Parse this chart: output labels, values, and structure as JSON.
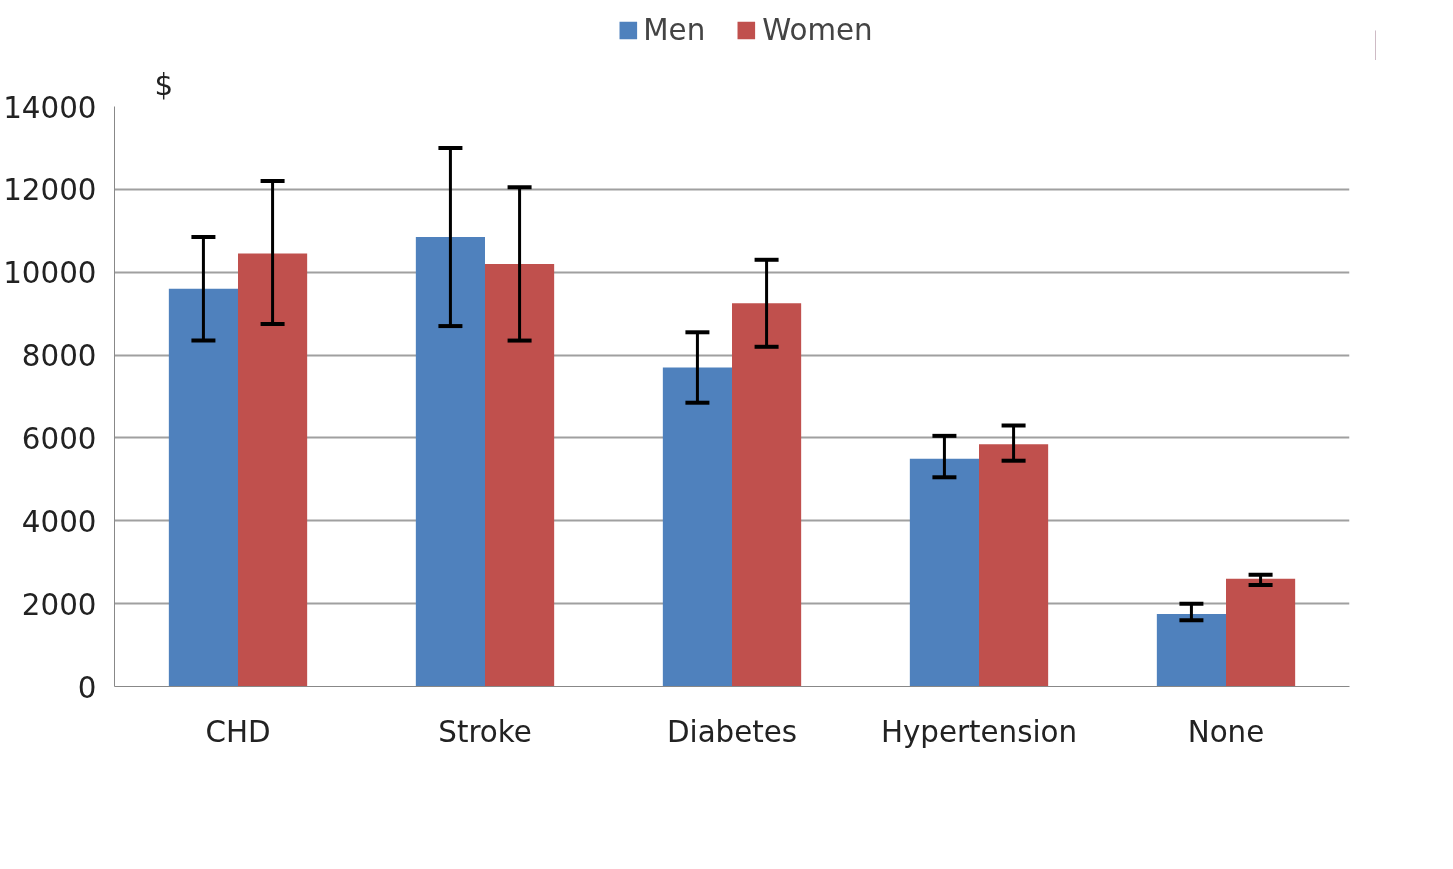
{
  "chart_data": {
    "type": "bar",
    "ylabel": "$",
    "categories": [
      "CHD",
      "Stroke",
      "Diabetes",
      "Hypertension",
      "None"
    ],
    "series": [
      {
        "name": "Men",
        "color": "#4f81bd",
        "values": [
          9600,
          10850,
          7700,
          5500,
          1750
        ],
        "errors": [
          [
            8350,
            10850
          ],
          [
            8700,
            13000
          ],
          [
            6850,
            8550
          ],
          [
            5050,
            6050
          ],
          [
            1600,
            2000
          ]
        ]
      },
      {
        "name": "Women",
        "color": "#c0504d",
        "values": [
          10450,
          10200,
          9250,
          5850,
          2600
        ],
        "errors": [
          [
            8750,
            12200
          ],
          [
            8350,
            12050
          ],
          [
            8200,
            10300
          ],
          [
            5450,
            6300
          ],
          [
            2450,
            2700
          ]
        ]
      }
    ],
    "ylim": [
      0,
      14000
    ],
    "yticks": [
      0,
      2000,
      4000,
      6000,
      8000,
      10000,
      12000,
      14000
    ],
    "grid": "y",
    "legend": "top"
  }
}
